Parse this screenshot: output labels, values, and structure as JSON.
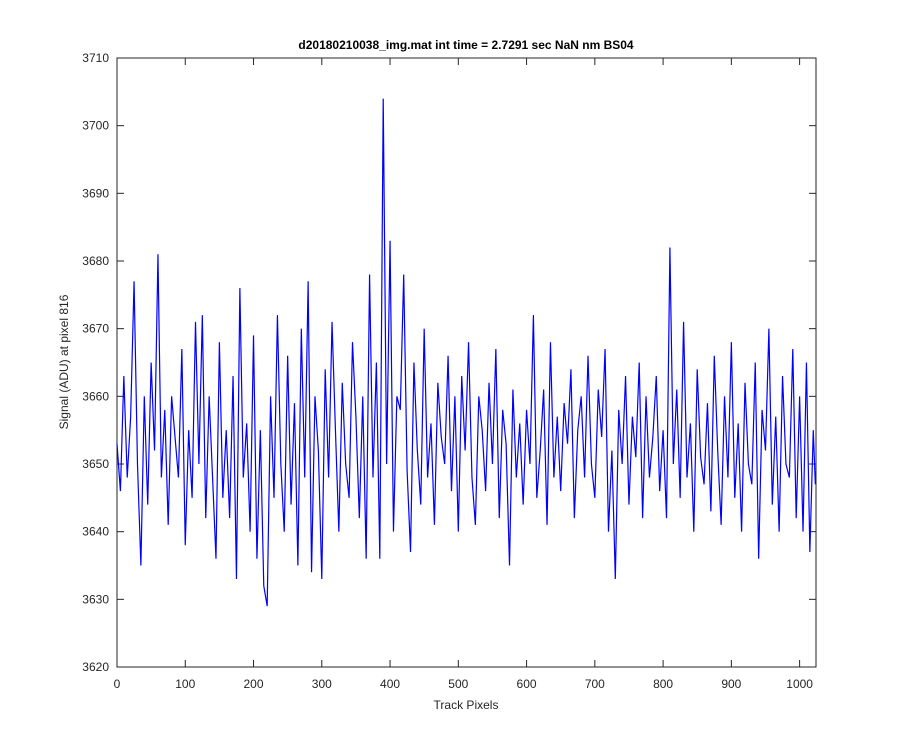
{
  "chart_data": {
    "type": "line",
    "title": "d20180210038_img.mat int time = 2.7291 sec  NaN nm BS04",
    "x_label": "Track Pixels",
    "y_label": "Signal (ADU) at pixel 816",
    "xlim": [
      0,
      1024
    ],
    "ylim": [
      3620,
      3710
    ],
    "xticks": [
      0,
      100,
      200,
      300,
      400,
      500,
      600,
      700,
      800,
      900,
      1000
    ],
    "yticks": [
      3620,
      3630,
      3640,
      3650,
      3660,
      3670,
      3680,
      3690,
      3700,
      3710
    ],
    "x": [
      0,
      5,
      10,
      15,
      20,
      25,
      30,
      35,
      40,
      45,
      50,
      55,
      60,
      65,
      70,
      75,
      80,
      85,
      90,
      95,
      100,
      105,
      110,
      115,
      120,
      125,
      130,
      135,
      140,
      145,
      150,
      155,
      160,
      165,
      170,
      175,
      180,
      185,
      190,
      195,
      200,
      205,
      210,
      215,
      220,
      225,
      230,
      235,
      240,
      245,
      250,
      255,
      260,
      265,
      270,
      275,
      280,
      285,
      290,
      295,
      300,
      305,
      310,
      315,
      320,
      325,
      330,
      335,
      340,
      345,
      350,
      355,
      360,
      365,
      370,
      375,
      380,
      385,
      390,
      395,
      400,
      405,
      410,
      415,
      420,
      425,
      430,
      435,
      440,
      445,
      450,
      455,
      460,
      465,
      470,
      475,
      480,
      485,
      490,
      495,
      500,
      505,
      510,
      515,
      520,
      525,
      530,
      535,
      540,
      545,
      550,
      555,
      560,
      565,
      570,
      575,
      580,
      585,
      590,
      595,
      600,
      605,
      610,
      615,
      620,
      625,
      630,
      635,
      640,
      645,
      650,
      655,
      660,
      665,
      670,
      675,
      680,
      685,
      690,
      695,
      700,
      705,
      710,
      715,
      720,
      725,
      730,
      735,
      740,
      745,
      750,
      755,
      760,
      765,
      770,
      775,
      780,
      785,
      790,
      795,
      800,
      805,
      810,
      815,
      820,
      825,
      830,
      835,
      840,
      845,
      850,
      855,
      860,
      865,
      870,
      875,
      880,
      885,
      890,
      895,
      900,
      905,
      910,
      915,
      920,
      925,
      930,
      935,
      940,
      945,
      950,
      955,
      960,
      965,
      970,
      975,
      980,
      985,
      990,
      995,
      1000,
      1005,
      1010,
      1015,
      1020,
      1023
    ],
    "series": [
      {
        "color": "#0000ff",
        "values": [
          3653,
          3646,
          3663,
          3648,
          3657,
          3677,
          3650,
          3635,
          3660,
          3644,
          3665,
          3652,
          3681,
          3648,
          3658,
          3641,
          3660,
          3654,
          3648,
          3667,
          3638,
          3655,
          3645,
          3671,
          3650,
          3672,
          3642,
          3660,
          3648,
          3636,
          3668,
          3645,
          3655,
          3642,
          3663,
          3633,
          3676,
          3648,
          3656,
          3640,
          3669,
          3636,
          3655,
          3632,
          3629,
          3660,
          3645,
          3672,
          3650,
          3640,
          3666,
          3644,
          3659,
          3635,
          3670,
          3648,
          3677,
          3634,
          3660,
          3652,
          3633,
          3664,
          3648,
          3671,
          3655,
          3640,
          3662,
          3650,
          3645,
          3668,
          3657,
          3642,
          3660,
          3636,
          3678,
          3648,
          3665,
          3636,
          3704,
          3650,
          3683,
          3640,
          3660,
          3658,
          3678,
          3649,
          3637,
          3665,
          3652,
          3644,
          3670,
          3648,
          3656,
          3641,
          3662,
          3654,
          3650,
          3666,
          3646,
          3660,
          3640,
          3663,
          3652,
          3668,
          3648,
          3641,
          3660,
          3655,
          3646,
          3662,
          3650,
          3667,
          3642,
          3658,
          3653,
          3635,
          3661,
          3648,
          3656,
          3644,
          3658,
          3650,
          3672,
          3645,
          3652,
          3661,
          3641,
          3668,
          3648,
          3657,
          3646,
          3659,
          3653,
          3664,
          3642,
          3655,
          3660,
          3648,
          3666,
          3650,
          3645,
          3661,
          3654,
          3667,
          3640,
          3652,
          3633,
          3658,
          3650,
          3663,
          3644,
          3657,
          3651,
          3665,
          3642,
          3660,
          3648,
          3654,
          3663,
          3646,
          3655,
          3642,
          3682,
          3650,
          3661,
          3645,
          3671,
          3648,
          3656,
          3640,
          3664,
          3651,
          3647,
          3659,
          3643,
          3666,
          3652,
          3641,
          3660,
          3648,
          3668,
          3645,
          3656,
          3640,
          3662,
          3650,
          3647,
          3665,
          3636,
          3658,
          3652,
          3670,
          3644,
          3657,
          3640,
          3663,
          3650,
          3648,
          3667,
          3642,
          3660,
          3640,
          3665,
          3637,
          3655,
          3647
        ]
      }
    ]
  }
}
